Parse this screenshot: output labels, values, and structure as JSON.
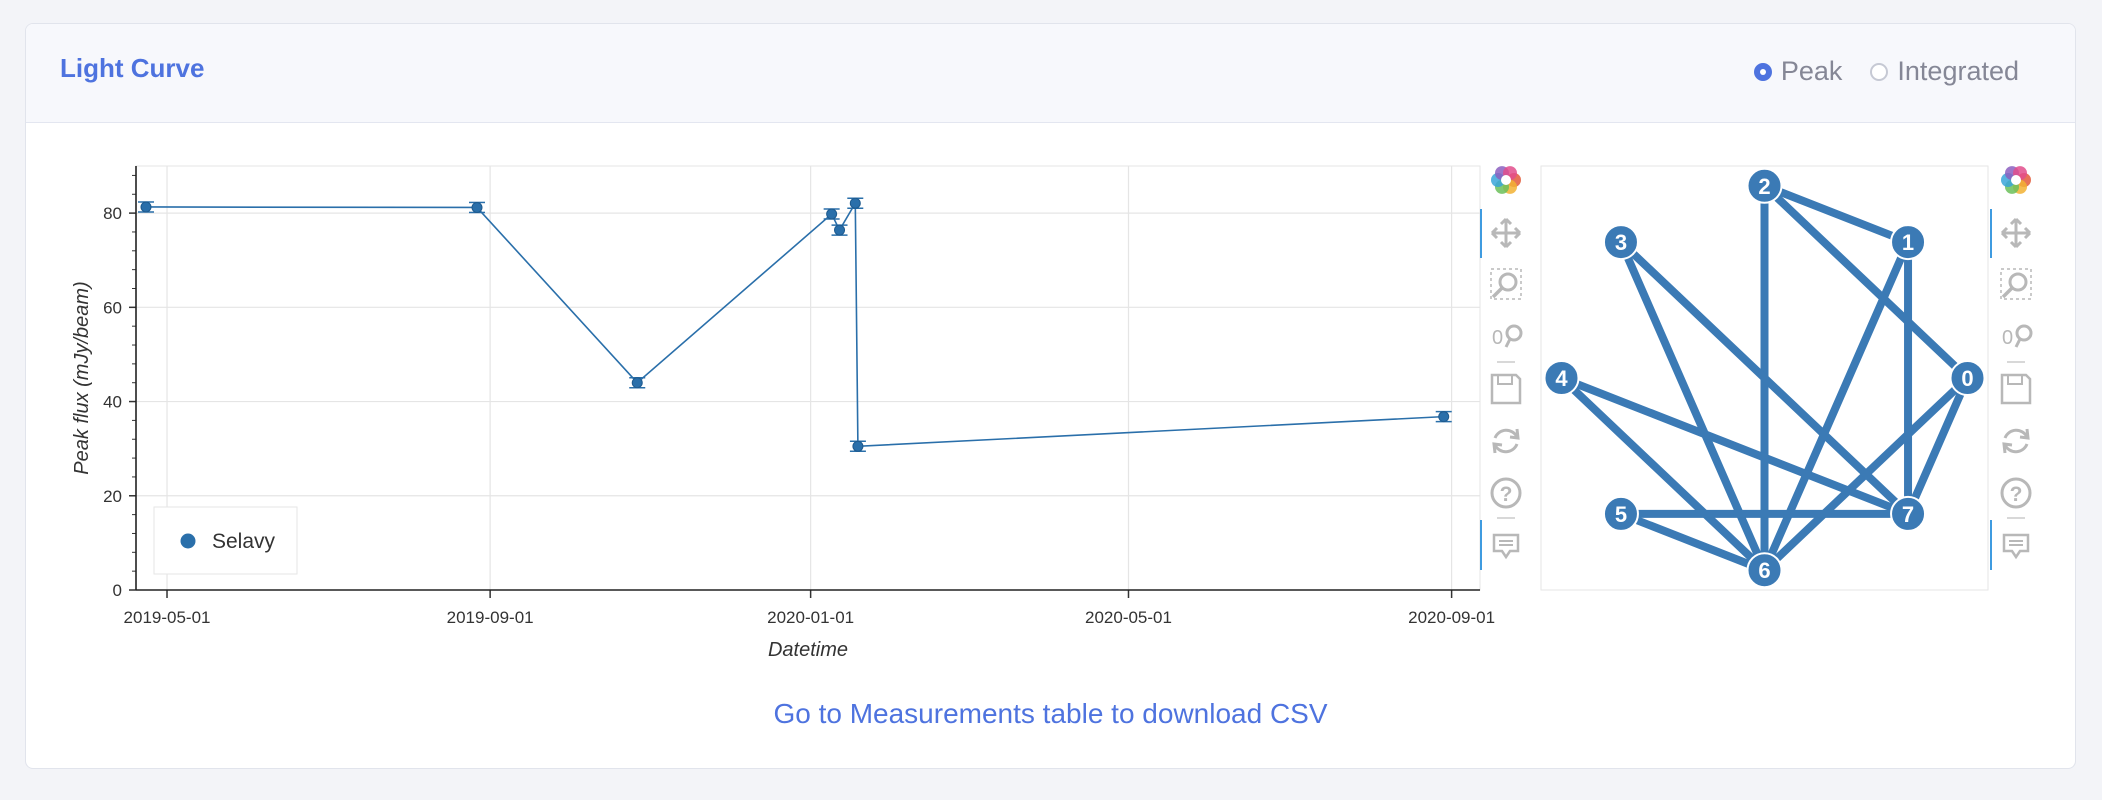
{
  "card": {
    "title": "Light Curve",
    "radio_options": [
      {
        "label": "Peak",
        "selected": true
      },
      {
        "label": "Integrated",
        "selected": false
      }
    ],
    "footer_link": "Go to Measurements table to download CSV"
  },
  "colors": {
    "accent": "#4e73df",
    "series": "#2a6faa",
    "graph": "#3b7ab5"
  },
  "chart_data": [
    {
      "type": "line",
      "xlabel": "Datetime",
      "ylabel": "Peak flux (mJy/beam)",
      "x_ticks": [
        "2019-05-01",
        "2019-09-01",
        "2020-01-01",
        "2020-05-01",
        "2020-09-01"
      ],
      "y_ticks": [
        0,
        20,
        40,
        60,
        80
      ],
      "ylim": [
        0,
        90
      ],
      "xlim": [
        "2019-04-23",
        "2020-09-08"
      ],
      "grid": true,
      "legend": "bottom-left",
      "series": [
        {
          "name": "Selavy",
          "marker": "circle",
          "error_bars": true,
          "points": [
            {
              "x": "2019-04-23",
              "y": 81.3
            },
            {
              "x": "2019-08-27",
              "y": 81.2
            },
            {
              "x": "2019-10-27",
              "y": 44.0
            },
            {
              "x": "2020-01-09",
              "y": 79.8
            },
            {
              "x": "2020-01-12",
              "y": 76.4
            },
            {
              "x": "2020-01-18",
              "y": 82.1
            },
            {
              "x": "2020-01-19",
              "y": 30.5
            },
            {
              "x": "2020-08-29",
              "y": 36.8
            }
          ]
        }
      ],
      "toolbar": [
        "bokeh-logo-icon",
        "pan-icon",
        "box-zoom-icon",
        "wheel-zoom-icon",
        "save-icon",
        "reset-icon",
        "help-icon",
        "hover-icon"
      ]
    },
    {
      "type": "network",
      "nodes": [
        "0",
        "1",
        "2",
        "3",
        "4",
        "5",
        "6",
        "7"
      ],
      "edges": [
        [
          "6",
          "1"
        ],
        [
          "6",
          "2"
        ],
        [
          "6",
          "3"
        ],
        [
          "6",
          "4"
        ],
        [
          "6",
          "5"
        ],
        [
          "6",
          "0"
        ],
        [
          "7",
          "1"
        ],
        [
          "7",
          "3"
        ],
        [
          "7",
          "4"
        ],
        [
          "7",
          "5"
        ],
        [
          "7",
          "0"
        ],
        [
          "2",
          "1"
        ],
        [
          "2",
          "0"
        ]
      ],
      "toolbar": [
        "bokeh-logo-icon",
        "pan-icon",
        "box-zoom-icon",
        "wheel-zoom-icon",
        "save-icon",
        "reset-icon",
        "help-icon",
        "hover-icon"
      ]
    }
  ]
}
